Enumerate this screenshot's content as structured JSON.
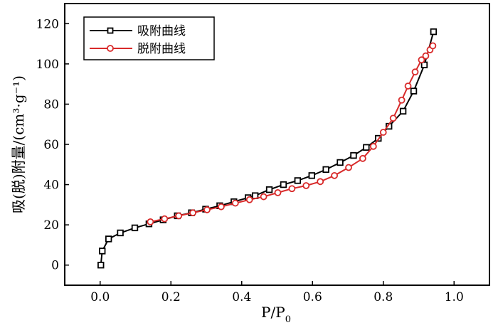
{
  "chart_data": {
    "type": "line",
    "xlabel": "P/P",
    "xlabel_sub": "0",
    "ylabel": "吸(脱)附量/(cm³·g⁻¹)",
    "xlim": [
      -0.1,
      1.1
    ],
    "ylim": [
      -10,
      130
    ],
    "x_ticks": [
      "0.0",
      "0.2",
      "0.4",
      "0.6",
      "0.8",
      "1.0"
    ],
    "x_tick_values": [
      0.0,
      0.2,
      0.4,
      0.6,
      0.8,
      1.0
    ],
    "y_ticks": [
      "0",
      "20",
      "40",
      "60",
      "80",
      "100",
      "120"
    ],
    "y_tick_values": [
      0,
      20,
      40,
      60,
      80,
      100,
      120
    ],
    "legend_position": "top-left",
    "series": [
      {
        "name": "吸附曲线",
        "color": "#000000",
        "marker": "square",
        "x": [
          0.002,
          0.006,
          0.024,
          0.057,
          0.098,
          0.138,
          0.178,
          0.218,
          0.258,
          0.298,
          0.338,
          0.378,
          0.418,
          0.438,
          0.478,
          0.518,
          0.558,
          0.598,
          0.638,
          0.678,
          0.716,
          0.752,
          0.786,
          0.816,
          0.856,
          0.886,
          0.916,
          0.942
        ],
        "y": [
          0,
          7,
          13,
          16,
          18.5,
          20.5,
          22.5,
          24.5,
          26,
          27.8,
          29.5,
          31.5,
          33.5,
          34.5,
          37.5,
          40,
          42,
          44.5,
          47.5,
          51,
          54.5,
          58.5,
          63,
          69,
          76.5,
          86.5,
          99.5,
          116
        ]
      },
      {
        "name": "脱附曲线",
        "color": "#d82a2a",
        "marker": "circle",
        "x": [
          0.142,
          0.182,
          0.222,
          0.262,
          0.302,
          0.342,
          0.382,
          0.422,
          0.462,
          0.502,
          0.542,
          0.582,
          0.622,
          0.662,
          0.702,
          0.742,
          0.772,
          0.8,
          0.828,
          0.852,
          0.87,
          0.89,
          0.908,
          0.92,
          0.932,
          0.94
        ],
        "y": [
          21.5,
          23,
          24.5,
          26,
          27.5,
          29,
          30.8,
          32.5,
          34,
          36,
          38,
          39.5,
          41.5,
          44.5,
          48.5,
          53,
          59,
          66,
          73,
          82,
          89,
          96,
          102,
          104,
          107,
          109
        ]
      }
    ]
  }
}
